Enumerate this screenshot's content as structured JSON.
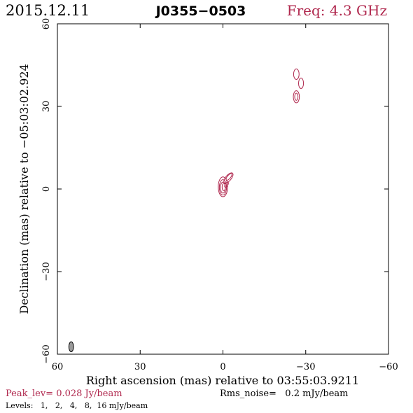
{
  "header": {
    "date": "2015.12.11",
    "source": "J0355−0503",
    "freq": "Freq: 4.3 GHz"
  },
  "colors": {
    "contour": "#b0284e",
    "accent_text": "#b0284e",
    "axis": "#000000",
    "beam_fill": "#9a9a9a"
  },
  "chart_data": {
    "type": "contour",
    "xlabel": "Right ascension (mas) relative to 03:55:03.9211",
    "ylabel": "Declination (mas) relative to −05:03:02.924",
    "xlim": [
      60,
      -60
    ],
    "ylim": [
      -60,
      60
    ],
    "xticks": [
      {
        "value": 60,
        "label": "60"
      },
      {
        "value": 30,
        "label": "30"
      },
      {
        "value": 0,
        "label": "0"
      },
      {
        "value": -30,
        "label": "−30"
      },
      {
        "value": -60,
        "label": "−60"
      }
    ],
    "yticks": [
      {
        "value": -60,
        "label": "−60"
      },
      {
        "value": -30,
        "label": "−30"
      },
      {
        "value": 0,
        "label": "0"
      },
      {
        "value": 30,
        "label": "30"
      },
      {
        "value": 60,
        "label": "60"
      }
    ],
    "contours": [
      {
        "x": 0.0,
        "y": 0.8,
        "rx": 1.7,
        "ry": 3.6,
        "angle": 0
      },
      {
        "x": 0.0,
        "y": 0.6,
        "rx": 1.3,
        "ry": 2.8,
        "angle": 0
      },
      {
        "x": 0.0,
        "y": 0.5,
        "rx": 0.9,
        "ry": 2.0,
        "angle": 0
      },
      {
        "x": -0.3,
        "y": 0.7,
        "rx": 0.6,
        "ry": 1.3,
        "angle": 0
      },
      {
        "x": -2.0,
        "y": 4.0,
        "rx": 1.0,
        "ry": 2.3,
        "angle": 40
      },
      {
        "x": -2.2,
        "y": 4.4,
        "rx": 0.6,
        "ry": 1.5,
        "angle": 40
      },
      {
        "x": -1.3,
        "y": 1.6,
        "rx": 0.5,
        "ry": 1.1,
        "angle": 30
      },
      {
        "x": -26.6,
        "y": 41.7,
        "rx": 1.0,
        "ry": 1.9,
        "angle": 0
      },
      {
        "x": -28.3,
        "y": 38.4,
        "rx": 0.9,
        "ry": 1.9,
        "angle": 0
      },
      {
        "x": -26.6,
        "y": 33.5,
        "rx": 1.1,
        "ry": 2.2,
        "angle": 0
      },
      {
        "x": -26.6,
        "y": 33.5,
        "rx": 0.6,
        "ry": 1.3,
        "angle": 0
      }
    ],
    "beam": {
      "x": 55.0,
      "y": -57.3,
      "rx": 0.85,
      "ry": 1.8,
      "angle": 0
    },
    "peak_level": "Peak_lev=  0.028 Jy/beam",
    "rms_noise": "Rms_noise=   0.2 mJy/beam",
    "levels": "Levels:   1,   2,   4,   8,  16 mJy/beam"
  }
}
